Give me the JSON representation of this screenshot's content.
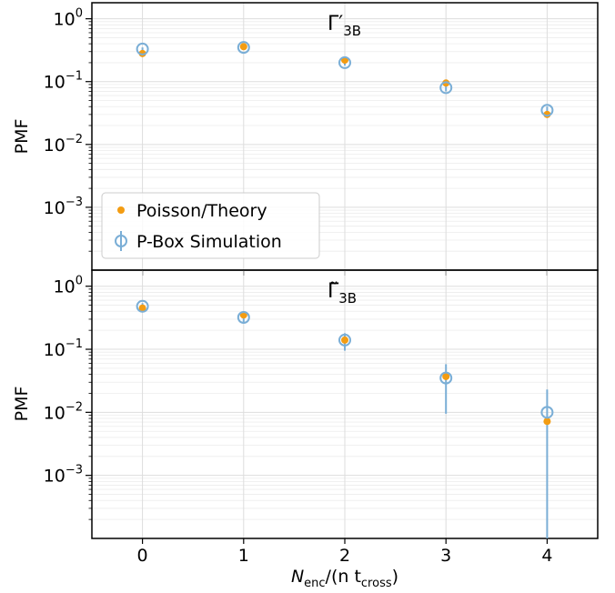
{
  "chart_data": [
    {
      "type": "scatter",
      "panel_label": "Γ′",
      "panel_label_sub": "3B",
      "ylabel": "PMF",
      "yscale": "log",
      "ylim": [
        0.0001,
        1.8
      ],
      "y_ticks": [
        {
          "value": 1,
          "base": "10",
          "exp": "0"
        },
        {
          "value": 0.1,
          "base": "10",
          "exp": "−1"
        },
        {
          "value": 0.01,
          "base": "10",
          "exp": "−2"
        },
        {
          "value": 0.001,
          "base": "10",
          "exp": "−3"
        }
      ],
      "xlim": [
        -0.5,
        4.5
      ],
      "grid": true,
      "legend_position": "lower-left",
      "legend": [
        "Poisson/Theory",
        "P-Box Simulation"
      ],
      "series": [
        {
          "name": "Poisson/Theory",
          "marker": "filled-circle",
          "color": "#f39c12",
          "x": [
            0,
            1,
            2,
            3,
            4
          ],
          "y": [
            0.28,
            0.36,
            0.22,
            0.095,
            0.03
          ]
        },
        {
          "name": "P-Box Simulation",
          "marker": "open-circle-errorbar",
          "color": "#7aaed6",
          "x": [
            0,
            1,
            2,
            3,
            4
          ],
          "y": [
            0.33,
            0.35,
            0.2,
            0.08,
            0.035
          ],
          "err_low": [
            0.31,
            0.33,
            0.18,
            0.07,
            0.03
          ],
          "err_high": [
            0.35,
            0.37,
            0.22,
            0.09,
            0.04
          ]
        }
      ]
    },
    {
      "type": "scatter",
      "panel_label": "Γ̃",
      "panel_label_sub": "3B",
      "ylabel": "PMF",
      "yscale": "log",
      "ylim": [
        0.0001,
        1.8
      ],
      "y_ticks": [
        {
          "value": 1,
          "base": "10",
          "exp": "0"
        },
        {
          "value": 0.1,
          "base": "10",
          "exp": "−1"
        },
        {
          "value": 0.01,
          "base": "10",
          "exp": "−2"
        },
        {
          "value": 0.001,
          "base": "10",
          "exp": "−3"
        }
      ],
      "xlim": [
        -0.5,
        4.5
      ],
      "x_ticks": [
        "0",
        "1",
        "2",
        "3",
        "4"
      ],
      "xlabel": "N",
      "xlabel_sub": "enc",
      "xlabel_mid": "/(n t",
      "xlabel_sub2": "cross",
      "xlabel_end": ")",
      "grid": true,
      "series": [
        {
          "name": "Poisson/Theory",
          "marker": "filled-circle",
          "color": "#f39c12",
          "x": [
            0,
            1,
            2,
            3,
            4
          ],
          "y": [
            0.45,
            0.35,
            0.14,
            0.037,
            0.0072
          ]
        },
        {
          "name": "P-Box Simulation",
          "marker": "open-circle-errorbar",
          "color": "#7aaed6",
          "x": [
            0,
            1,
            2,
            3,
            4
          ],
          "y": [
            0.48,
            0.32,
            0.14,
            0.035,
            0.01
          ],
          "err_low": [
            0.42,
            0.27,
            0.095,
            0.0095,
            0.0001
          ],
          "err_high": [
            0.54,
            0.37,
            0.18,
            0.058,
            0.023
          ]
        }
      ]
    }
  ]
}
